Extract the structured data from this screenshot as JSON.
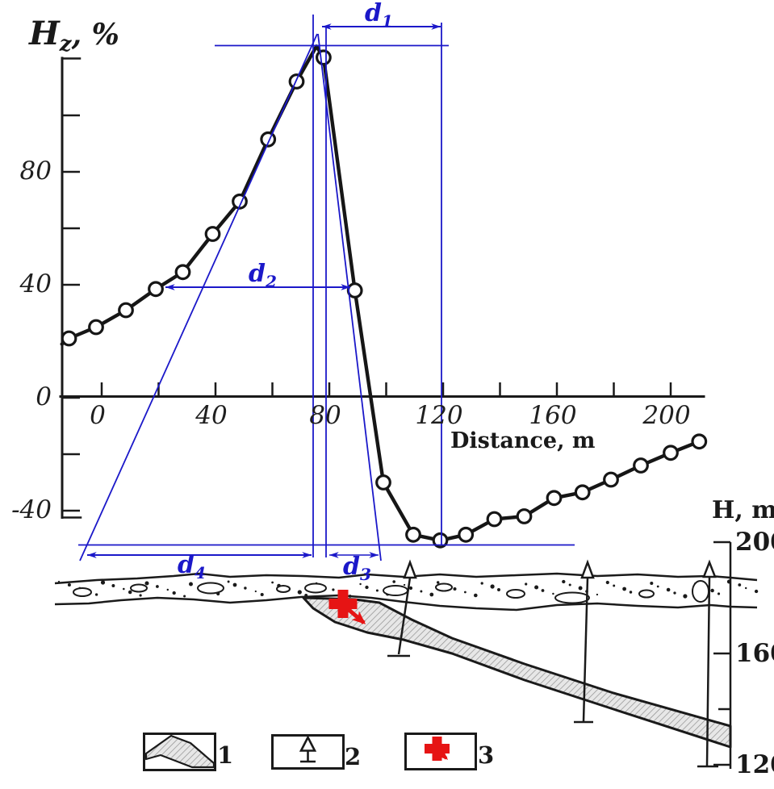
{
  "labels": {
    "hz_main": "H",
    "hz_sub": "z",
    "hz_unit": ", %",
    "distance": "Distance, m",
    "depth_axis": "H, m"
  },
  "dimension_labels": {
    "d1": {
      "base": "d",
      "sub": "1"
    },
    "d2": {
      "base": "d",
      "sub": "2"
    },
    "d3": {
      "base": "d",
      "sub": "3"
    },
    "d4": {
      "base": "d",
      "sub": "4"
    }
  },
  "legend": [
    {
      "label": "1",
      "symbol": "hatched-dike-band"
    },
    {
      "label": "2",
      "symbol": "borehole"
    },
    {
      "label": "3",
      "symbol": "red-cross-with-dip-arrow"
    }
  ],
  "section": {
    "depth_ticks": [
      {
        "value": 200,
        "label": "200"
      },
      {
        "value": 160,
        "label": "160"
      },
      {
        "value": 140,
        "label": ""
      },
      {
        "value": 120,
        "label": "120"
      }
    ]
  },
  "colors": {
    "ink": "#1a1a1a",
    "construction_blue": "#1b18c9",
    "marker_red": "#e61414",
    "hatch_fill": "#e7e7e7",
    "hatch_line": "#8f8f8f"
  },
  "chart_data": {
    "type": "line",
    "title": "",
    "xlabel": "Distance, m",
    "ylabel": "Hz, %",
    "x_units": "m",
    "y_units": "%",
    "xlim": [
      -14,
      212
    ],
    "ylim": [
      -52,
      126
    ],
    "grid": false,
    "x_ticks": [
      {
        "value": 0,
        "label": "0"
      },
      {
        "value": 20,
        "label": ""
      },
      {
        "value": 40,
        "label": "40"
      },
      {
        "value": 60,
        "label": ""
      },
      {
        "value": 80,
        "label": "80"
      },
      {
        "value": 100,
        "label": ""
      },
      {
        "value": 120,
        "label": "120"
      },
      {
        "value": 140,
        "label": ""
      },
      {
        "value": 160,
        "label": "160"
      },
      {
        "value": 180,
        "label": ""
      },
      {
        "value": 200,
        "label": "200"
      }
    ],
    "y_ticks": [
      {
        "value": 100,
        "label": ""
      },
      {
        "value": 80,
        "label": "80"
      },
      {
        "value": 60,
        "label": ""
      },
      {
        "value": 40,
        "label": "40"
      },
      {
        "value": 0,
        "label": "0"
      },
      {
        "value": -20,
        "label": ""
      },
      {
        "value": -40,
        "label": "-40"
      }
    ],
    "series": [
      {
        "name": "Hz, %",
        "x": [
          -14,
          -11.5,
          -2,
          8.5,
          19,
          28.5,
          39,
          48.5,
          58.5,
          68.5,
          75.5,
          78,
          89,
          99,
          109.5,
          119,
          128,
          138,
          148.5,
          159,
          169,
          179,
          189.5,
          200,
          210
        ],
        "y": [
          19,
          21,
          25,
          31,
          38.5,
          44.5,
          58,
          69.5,
          91.5,
          112,
          124.5,
          120.5,
          38,
          -30,
          -48.5,
          -50.5,
          -48.5,
          -43,
          -42,
          -35.5,
          -33.5,
          -29,
          -24,
          -19.5,
          -15.5
        ],
        "marker": [
          0,
          1,
          1,
          1,
          1,
          1,
          1,
          1,
          1,
          1,
          0,
          1,
          1,
          1,
          1,
          1,
          1,
          1,
          1,
          1,
          1,
          1,
          1,
          1,
          1
        ]
      }
    ],
    "peak": {
      "x": 75.5,
      "y": 124.5
    },
    "minimum": {
      "x": 119,
      "y": -50.5
    },
    "annotations": [
      "d1 = width from peak to far construction line",
      "d2 = anomaly half-width",
      "d3",
      "d4"
    ],
    "legend_position": "none"
  }
}
